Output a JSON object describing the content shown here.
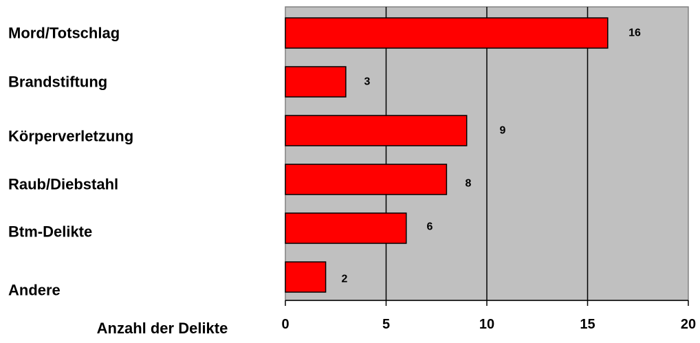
{
  "chart_data": {
    "type": "bar",
    "orientation": "horizontal",
    "categories": [
      "Mord/Totschlag",
      "Brandstiftung",
      "Körperverletzung",
      "Raub/Diebstahl",
      "Btm-Delikte",
      "Andere"
    ],
    "values": [
      16,
      3,
      9,
      8,
      6,
      2
    ],
    "xlabel": "Anzahl der Delikte",
    "xlim": [
      0,
      20
    ],
    "xticks": [
      0,
      5,
      10,
      15,
      20
    ],
    "grid": "vertical lines",
    "legend": "none",
    "data_labels": true
  },
  "colors": {
    "bar_fill": "#ff0000",
    "plot_background": "#c0c0c0",
    "gridline": "#000000",
    "text": "#000000"
  }
}
